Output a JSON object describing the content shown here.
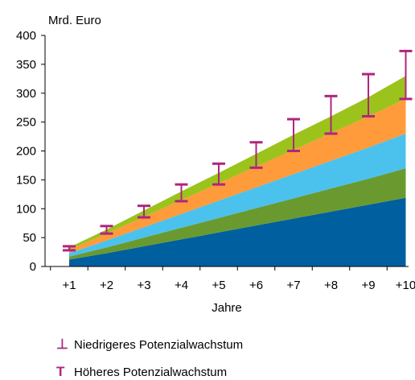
{
  "chart_data": {
    "type": "area",
    "ylabel": "Mrd. Euro",
    "xlabel": "Jahre",
    "ylim": [
      0,
      400
    ],
    "yticks": [
      0,
      50,
      100,
      150,
      200,
      250,
      300,
      350,
      400
    ],
    "categories": [
      "+1",
      "+2",
      "+3",
      "+4",
      "+5",
      "+6",
      "+7",
      "+8",
      "+9",
      "+10"
    ],
    "stacked": true,
    "series": [
      {
        "color": "#00609f",
        "values": [
          12,
          23,
          35,
          47,
          59,
          71,
          83,
          95,
          107,
          119
        ]
      },
      {
        "color": "#6a9a2f",
        "values": [
          5,
          10,
          15,
          20,
          25,
          30,
          35,
          40,
          45,
          51
        ]
      },
      {
        "color": "#4bc1ee",
        "values": [
          6,
          12,
          18,
          24,
          30,
          36,
          42,
          48,
          54,
          60
        ]
      },
      {
        "color": "#ff9b3a",
        "values": [
          6,
          12,
          18,
          24,
          30,
          36,
          42,
          48,
          54,
          60
        ]
      },
      {
        "color": "#9bc31c",
        "values": [
          4,
          7,
          11,
          15,
          18,
          22,
          26,
          29,
          33,
          40
        ]
      }
    ],
    "error_bars": {
      "color": "#b0257e",
      "low": [
        28,
        57,
        85,
        113,
        142,
        171,
        200,
        230,
        260,
        290
      ],
      "high": [
        35,
        70,
        105,
        142,
        178,
        215,
        255,
        295,
        333,
        373
      ]
    }
  },
  "legend": {
    "low_label": "Niedrigeres Potenzialwachstum",
    "high_label": "Höheres Potenzialwachstum",
    "low_symbol": "⊥",
    "high_symbol": "T"
  }
}
